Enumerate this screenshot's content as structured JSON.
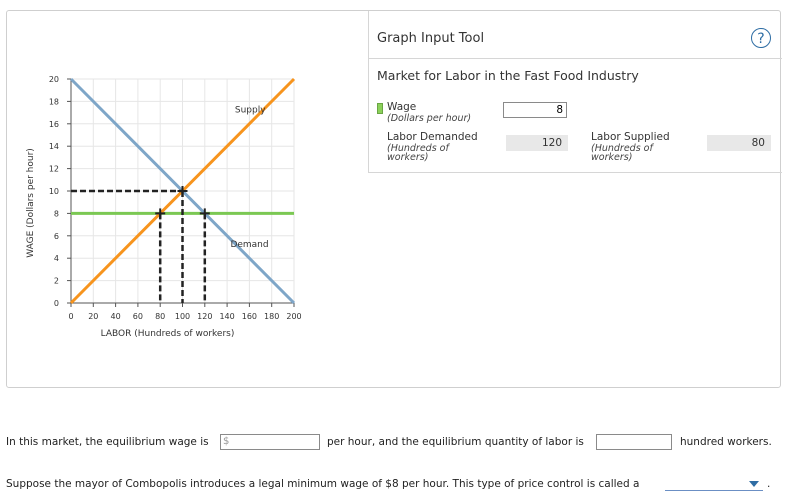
{
  "chart_data": {
    "type": "line",
    "xlabel": "LABOR (Hundreds of workers)",
    "ylabel": "WAGE (Dollars per hour)",
    "xlim": [
      0,
      200
    ],
    "ylim": [
      0,
      20
    ],
    "xticks": [
      0,
      20,
      40,
      60,
      80,
      100,
      120,
      140,
      160,
      180,
      200
    ],
    "yticks": [
      0,
      2,
      4,
      6,
      8,
      10,
      12,
      14,
      16,
      18,
      20
    ],
    "grid": true,
    "series": [
      {
        "name": "Supply",
        "color": "#f7941d",
        "points": [
          [
            0,
            0
          ],
          [
            200,
            20
          ]
        ]
      },
      {
        "name": "Demand",
        "color": "#7ea6c8",
        "points": [
          [
            0,
            20
          ],
          [
            200,
            0
          ]
        ]
      }
    ],
    "wage_line": {
      "y": 8,
      "color": "#7bc853"
    },
    "equilibrium_marker": {
      "x": 100,
      "y": 10
    },
    "wage_markers": [
      {
        "x": 80,
        "y": 8
      },
      {
        "x": 120,
        "y": 8
      }
    ]
  },
  "tool": {
    "title": "Graph Input Tool",
    "help": "?",
    "market_title": "Market for Labor in the Fast Food Industry",
    "wage_label": "Wage",
    "wage_sub": "(Dollars per hour)",
    "wage_value": "8",
    "ld_label": "Labor Demanded",
    "ld_sub1": "(Hundreds of",
    "ld_sub2": "workers)",
    "ld_value": "120",
    "ls_label": "Labor Supplied",
    "ls_sub1": "(Hundreds of",
    "ls_sub2": "workers)",
    "ls_value": "80"
  },
  "question": {
    "q1_part1": "In this market, the equilibrium wage is",
    "q1_part2": "per hour, and the equilibrium quantity of labor is",
    "q1_part3": "hundred workers.",
    "dollar_prefix": "$",
    "q2": "Suppose the mayor of Combopolis introduces a legal minimum wage of $8 per hour. This type of price control is called a",
    "q2_end": "."
  }
}
